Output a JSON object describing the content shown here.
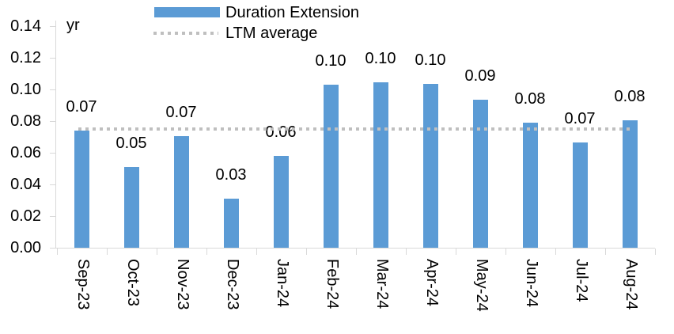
{
  "legend": {
    "series1_label": "Duration Extension",
    "series2_label": "LTM average"
  },
  "chart_data": {
    "type": "bar",
    "title": "",
    "xlabel": "",
    "ylabel": "yr",
    "ylim": [
      0,
      0.14
    ],
    "ytick_interval": 0.02,
    "yticks": [
      "0.14",
      "0.12",
      "0.10",
      "0.08",
      "0.06",
      "0.04",
      "0.02",
      "0.00"
    ],
    "grid": false,
    "legend_position": "top",
    "categories": [
      "Sep-23",
      "Oct-23",
      "Nov-23",
      "Dec-23",
      "Jan-24",
      "Feb-24",
      "Mar-24",
      "Apr-24",
      "May-24",
      "Jun-24",
      "Jul-24",
      "Aug-24"
    ],
    "series": [
      {
        "name": "Duration Extension",
        "type": "bar",
        "color": "#5b9bd5",
        "values": [
          0.074,
          0.051,
          0.0705,
          0.031,
          0.058,
          0.103,
          0.1045,
          0.1035,
          0.0935,
          0.079,
          0.0665,
          0.0805
        ],
        "data_labels": [
          "0.07",
          "0.05",
          "0.07",
          "0.03",
          "0.06",
          "0.10",
          "0.10",
          "0.10",
          "0.09",
          "0.08",
          "0.07",
          "0.08"
        ]
      },
      {
        "name": "LTM average",
        "type": "line",
        "line_style": "dotted",
        "color": "#bfbfbf",
        "value": 0.075
      }
    ]
  },
  "colors": {
    "bar": "#5b9bd5",
    "avg_line": "#bfbfbf",
    "axis": "#d9d9d9",
    "text": "#000000",
    "background": "#ffffff"
  }
}
